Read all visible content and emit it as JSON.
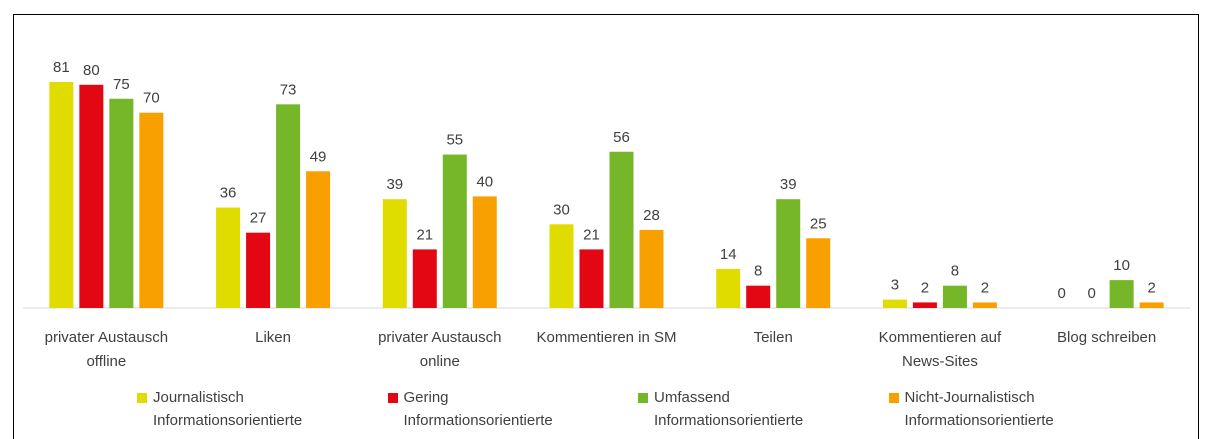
{
  "chart_data": {
    "type": "bar",
    "categories": [
      "privater Austausch offline",
      "Liken",
      "privater Austausch online",
      "Kommentieren in SM",
      "Teilen",
      "Kommentieren auf News-Sites",
      "Blog schreiben"
    ],
    "series": [
      {
        "name": "Journalistisch Informationsorientierte",
        "color": "#e0dc00",
        "values": [
          81,
          36,
          39,
          30,
          14,
          3,
          0
        ]
      },
      {
        "name": "Gering Informationsorientierte",
        "color": "#e30613",
        "values": [
          80,
          27,
          21,
          21,
          8,
          2,
          0
        ]
      },
      {
        "name": "Umfassend Informationsorientierte",
        "color": "#76b72a",
        "values": [
          75,
          73,
          55,
          56,
          39,
          8,
          10
        ]
      },
      {
        "name": "Nicht-Journalistisch Informationsorientierte",
        "color": "#f8a000",
        "values": [
          70,
          49,
          40,
          28,
          25,
          2,
          2
        ]
      }
    ],
    "legend": "bottom",
    "grid": false
  }
}
